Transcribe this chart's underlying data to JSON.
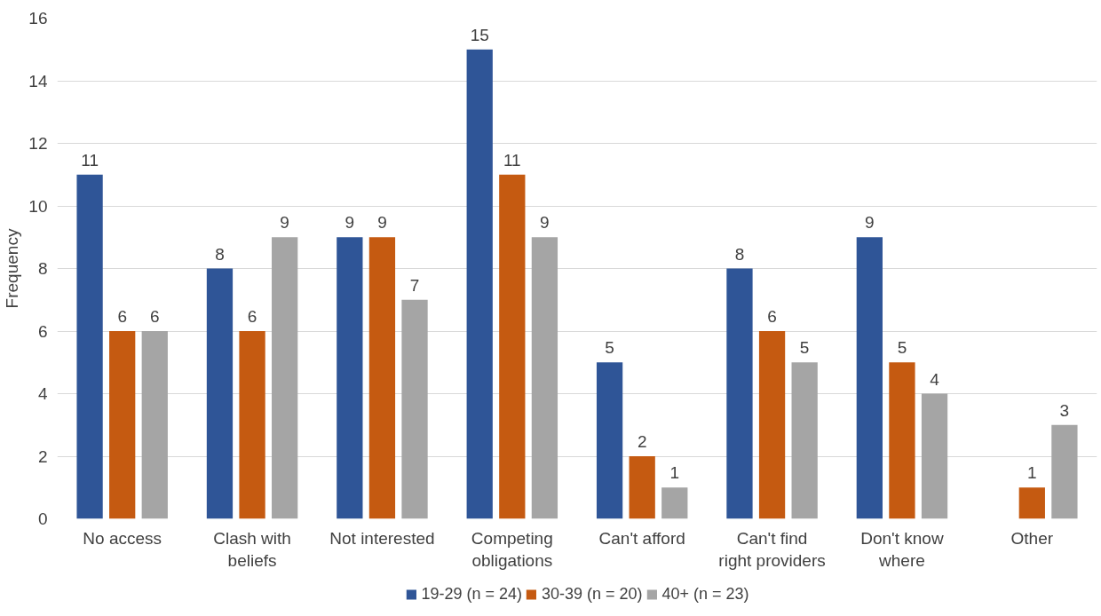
{
  "chart_data": {
    "type": "bar",
    "ylabel": "Frequency",
    "categories": [
      "No access",
      "Clash with\nbeliefs",
      "Not interested",
      "Competing\nobligations",
      "Can't afford",
      "Can't find\nright providers",
      "Don't know\nwhere",
      "Other"
    ],
    "series": [
      {
        "name": "19-29 (n = 24)",
        "color": "#2f5597",
        "values": [
          11,
          8,
          9,
          15,
          5,
          8,
          9,
          null
        ]
      },
      {
        "name": "30-39 (n = 20)",
        "color": "#c55a11",
        "values": [
          6,
          6,
          9,
          11,
          2,
          6,
          5,
          1
        ]
      },
      {
        "name": "40+ (n = 23)",
        "color": "#a5a5a5",
        "values": [
          6,
          9,
          7,
          9,
          1,
          5,
          4,
          3
        ]
      }
    ],
    "ylim": [
      0,
      16
    ],
    "yticks": [
      0,
      2,
      4,
      6,
      8,
      10,
      12,
      14,
      16
    ],
    "grid": "y",
    "legend": "bottom",
    "data_labels": true
  }
}
